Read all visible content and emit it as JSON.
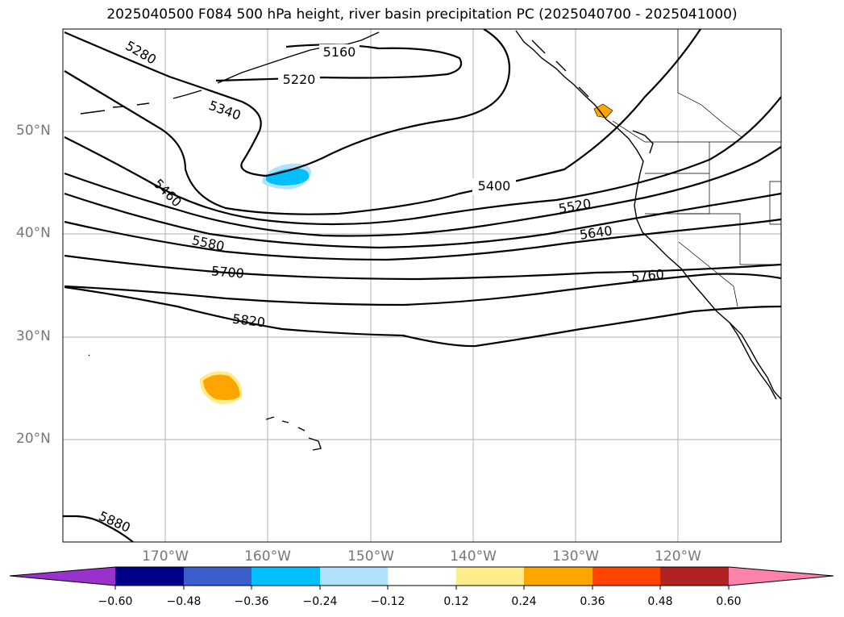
{
  "title": "2025040500 F084 500 hPa height, river basin precipitation PC (2025040700 - 2025041000)",
  "lat_labels": [
    "50°N",
    "40°N",
    "30°N",
    "20°N"
  ],
  "lon_labels": [
    "170°W",
    "160°W",
    "150°W",
    "140°W",
    "130°W",
    "120°W"
  ],
  "contour_labels": [
    "5160",
    "5220",
    "5280",
    "5340",
    "5400",
    "5460",
    "5520",
    "5580",
    "5640",
    "5700",
    "5760",
    "5820",
    "5880"
  ],
  "colorbar": {
    "ticks": [
      "−0.60",
      "−0.48",
      "−0.36",
      "−0.24",
      "−0.12",
      "0.12",
      "0.24",
      "0.36",
      "0.48",
      "0.60"
    ],
    "colors": [
      "#9932cc",
      "#00008b",
      "#3a5fcd",
      "#00bfff",
      "#b0e2ff",
      "#ffffff",
      "#ffec8b",
      "#ffa500",
      "#ff4500",
      "#b22222",
      "#ff82ab"
    ]
  },
  "colors": {
    "positive_anomaly": "#ffa500",
    "weak_positive": "#ffec8b",
    "negative_anomaly": "#00bfff",
    "weak_negative": "#b0e2ff"
  }
}
